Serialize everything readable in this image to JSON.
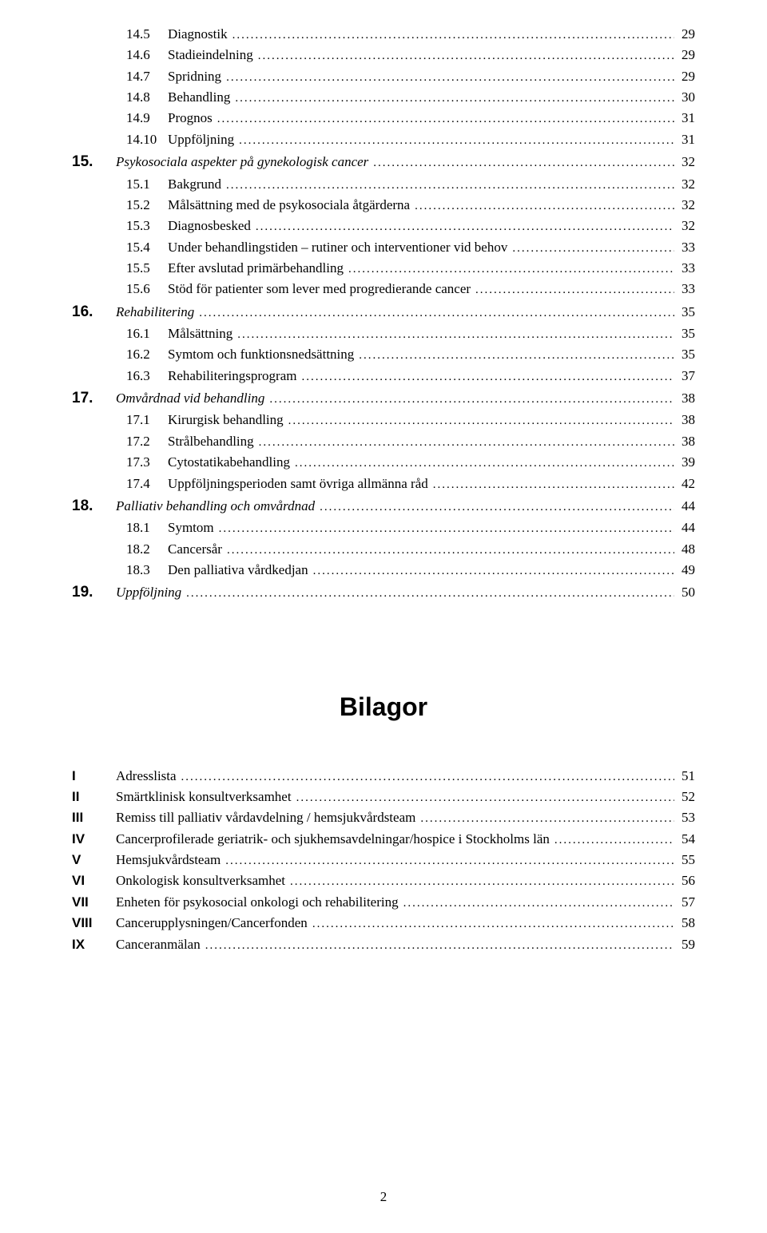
{
  "toc": [
    {
      "type": "sub",
      "num": "14.5",
      "title": "Diagnostik",
      "page": "29"
    },
    {
      "type": "sub",
      "num": "14.6",
      "title": "Stadieindelning",
      "page": "29"
    },
    {
      "type": "sub",
      "num": "14.7",
      "title": "Spridning",
      "page": "29"
    },
    {
      "type": "sub",
      "num": "14.8",
      "title": "Behandling",
      "page": "30"
    },
    {
      "type": "sub",
      "num": "14.9",
      "title": "Prognos",
      "page": "31"
    },
    {
      "type": "sub",
      "num": "14.10",
      "title": "Uppföljning",
      "page": "31"
    },
    {
      "type": "main",
      "num": "15.",
      "title": "Psykosociala aspekter på gynekologisk cancer",
      "page": "32"
    },
    {
      "type": "sub",
      "num": "15.1",
      "title": "Bakgrund",
      "page": "32"
    },
    {
      "type": "sub",
      "num": "15.2",
      "title": "Målsättning med de psykosociala åtgärderna",
      "page": "32"
    },
    {
      "type": "sub",
      "num": "15.3",
      "title": "Diagnosbesked",
      "page": "32"
    },
    {
      "type": "sub",
      "num": "15.4",
      "title": "Under behandlingstiden – rutiner och interventioner vid behov",
      "page": "33"
    },
    {
      "type": "sub",
      "num": "15.5",
      "title": "Efter avslutad primärbehandling",
      "page": "33"
    },
    {
      "type": "sub",
      "num": "15.6",
      "title": "Stöd för patienter som lever med progredierande cancer",
      "page": "33"
    },
    {
      "type": "main",
      "num": "16.",
      "title": "Rehabilitering",
      "page": "35"
    },
    {
      "type": "sub",
      "num": "16.1",
      "title": "Målsättning",
      "page": "35"
    },
    {
      "type": "sub",
      "num": "16.2",
      "title": "Symtom och funktionsnedsättning",
      "page": "35"
    },
    {
      "type": "sub",
      "num": "16.3",
      "title": "Rehabiliteringsprogram",
      "page": "37"
    },
    {
      "type": "main",
      "num": "17.",
      "title": "Omvårdnad vid behandling",
      "page": "38"
    },
    {
      "type": "sub",
      "num": "17.1",
      "title": "Kirurgisk behandling",
      "page": "38"
    },
    {
      "type": "sub",
      "num": "17.2",
      "title": "Strålbehandling",
      "page": "38"
    },
    {
      "type": "sub",
      "num": "17.3",
      "title": "Cytostatikabehandling",
      "page": "39"
    },
    {
      "type": "sub",
      "num": "17.4",
      "title": "Uppföljningsperioden samt övriga allmänna råd",
      "page": "42"
    },
    {
      "type": "main",
      "num": "18.",
      "title": "Palliativ behandling och omvårdnad",
      "page": "44"
    },
    {
      "type": "sub",
      "num": "18.1",
      "title": "Symtom",
      "page": "44"
    },
    {
      "type": "sub",
      "num": "18.2",
      "title": "Cancersår",
      "page": "48"
    },
    {
      "type": "sub",
      "num": "18.3",
      "title": "Den palliativa vårdkedjan",
      "page": "49"
    },
    {
      "type": "main",
      "num": "19.",
      "title": "Uppföljning",
      "page": "50"
    }
  ],
  "bilagor_title": "Bilagor",
  "bilagor": [
    {
      "roman": "I",
      "title": "Adresslista",
      "page": "51"
    },
    {
      "roman": "II",
      "title": "Smärtklinisk konsultverksamhet",
      "page": "52"
    },
    {
      "roman": "III",
      "title": "Remiss till palliativ vårdavdelning / hemsjukvårdsteam",
      "page": "53"
    },
    {
      "roman": "IV",
      "title": "Cancerprofilerade geriatrik- och sjukhemsavdelningar/hospice i Stockholms län",
      "page": "54"
    },
    {
      "roman": "V",
      "title": "Hemsjukvårdsteam",
      "page": "55"
    },
    {
      "roman": "VI",
      "title": "Onkologisk konsultverksamhet",
      "page": "56"
    },
    {
      "roman": "VII",
      "title": "Enheten för psykosocial onkologi och rehabilitering",
      "page": "57"
    },
    {
      "roman": "VIII",
      "title": "Cancerupplysningen/Cancerfonden",
      "page": "58"
    },
    {
      "roman": "IX",
      "title": "Canceranmälan",
      "page": "59"
    }
  ],
  "page_number": "2"
}
